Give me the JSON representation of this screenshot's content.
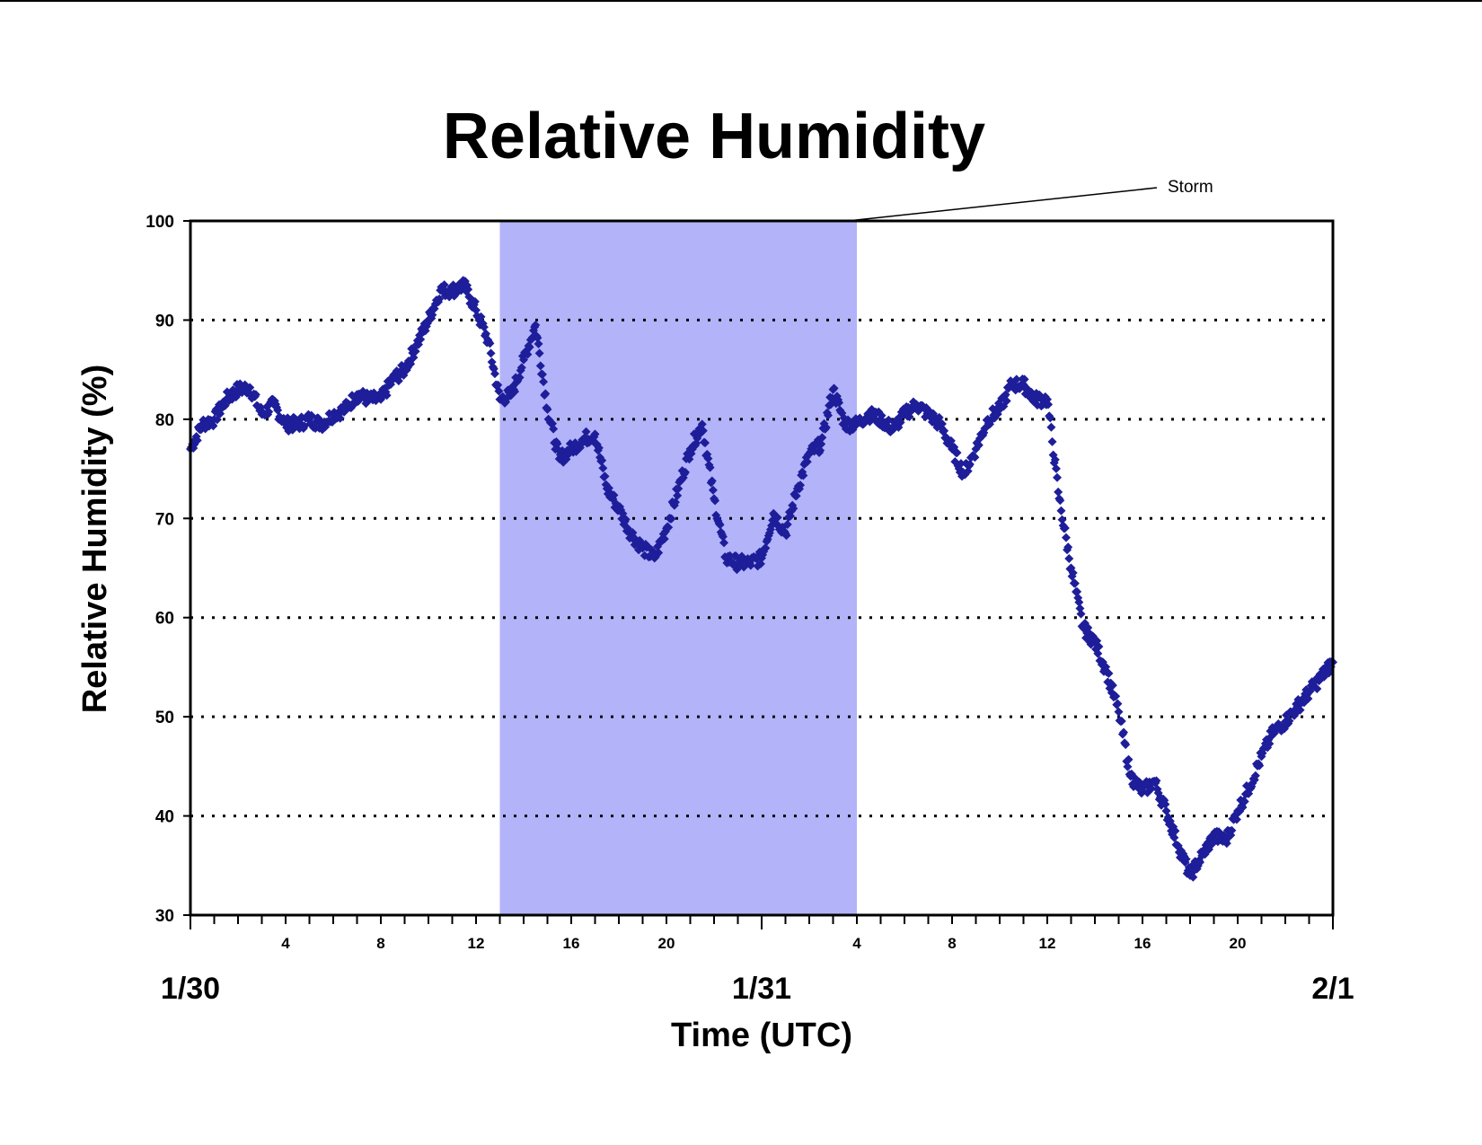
{
  "chart_data": {
    "type": "scatter",
    "title": "Relative Humidity",
    "xlabel": "Time (UTC)",
    "ylabel": "Relative Humidity (%)",
    "xlim_hours": [
      0,
      48
    ],
    "ylim": [
      30,
      100
    ],
    "yticks": [
      30,
      40,
      50,
      60,
      70,
      80,
      90,
      100
    ],
    "grid": "horizontal dotted",
    "legend": "none",
    "marker": "diamond",
    "colors": {
      "series": "#1e1e9a",
      "storm_shade": "#b3b3fa",
      "grid": "#000000",
      "axis": "#000000"
    },
    "x_ticks_hours": [
      {
        "hour": 4,
        "label": "4"
      },
      {
        "hour": 8,
        "label": "8"
      },
      {
        "hour": 12,
        "label": "12"
      },
      {
        "hour": 16,
        "label": "16"
      },
      {
        "hour": 20,
        "label": "20"
      },
      {
        "hour": 28,
        "label": "4"
      },
      {
        "hour": 32,
        "label": "8"
      },
      {
        "hour": 36,
        "label": "12"
      },
      {
        "hour": 40,
        "label": "16"
      },
      {
        "hour": 44,
        "label": "20"
      }
    ],
    "day_labels": [
      {
        "hour": 0,
        "label": "1/30"
      },
      {
        "hour": 24,
        "label": "1/31"
      },
      {
        "hour": 48,
        "label": "2/1"
      }
    ],
    "storm_shade": {
      "x_start_hours": 13,
      "x_end_hours": 28,
      "label": "Storm"
    },
    "series": [
      {
        "x_hours": [
          0,
          0.5,
          1,
          1.5,
          2,
          2.5,
          3,
          3.5,
          4,
          4.5,
          5,
          5.5,
          6,
          6.5,
          7,
          7.5,
          8,
          8.5,
          9,
          9.5,
          10,
          10.5,
          11,
          11.5,
          12,
          12.5,
          13,
          13.5,
          14,
          14.5,
          15,
          15.5,
          16,
          16.5,
          17,
          17.5,
          18,
          18.5,
          19,
          19.5,
          20,
          20.5,
          21,
          21.5,
          22,
          22.5,
          23,
          23.5,
          24,
          24.5,
          25,
          25.5,
          26,
          26.5,
          27,
          27.5,
          28,
          28.5,
          29,
          29.5,
          30,
          30.5,
          31,
          31.5,
          32,
          32.5,
          33,
          33.5,
          34,
          34.5,
          35,
          35.5,
          36,
          36.5,
          37,
          37.5,
          38,
          38.5,
          39,
          39.5,
          40,
          40.5,
          41,
          41.5,
          42,
          42.5,
          43,
          43.5,
          44,
          44.5,
          45,
          45.5,
          46,
          46.5,
          47,
          47.5,
          48
        ],
        "y": [
          77,
          79.5,
          80,
          82,
          83,
          83.2,
          80.5,
          81.5,
          79.5,
          79.5,
          80,
          79.5,
          80.5,
          81,
          82.5,
          82,
          82,
          84,
          85,
          87.5,
          90,
          93,
          93,
          93.5,
          91,
          88,
          82,
          82.5,
          86,
          89.5,
          81,
          76,
          77,
          78,
          78.5,
          73,
          71,
          68.5,
          67,
          66,
          69,
          73,
          77,
          79.5,
          72,
          66,
          65.5,
          65.5,
          66,
          70.5,
          68.5,
          73,
          76.5,
          77.5,
          83,
          79.5,
          79.5,
          80.5,
          80,
          79,
          80.5,
          81.5,
          80.5,
          79.5,
          77,
          74.5,
          77,
          80,
          81,
          83.5,
          83.5,
          82,
          82,
          72,
          65,
          59,
          57.5,
          54.5,
          50.5,
          44,
          42.5,
          43.5,
          40.5,
          37,
          34,
          36,
          38,
          37.5,
          40.5,
          43,
          46,
          48.5,
          49.5,
          51,
          52.5,
          54,
          55.5
        ]
      }
    ]
  }
}
